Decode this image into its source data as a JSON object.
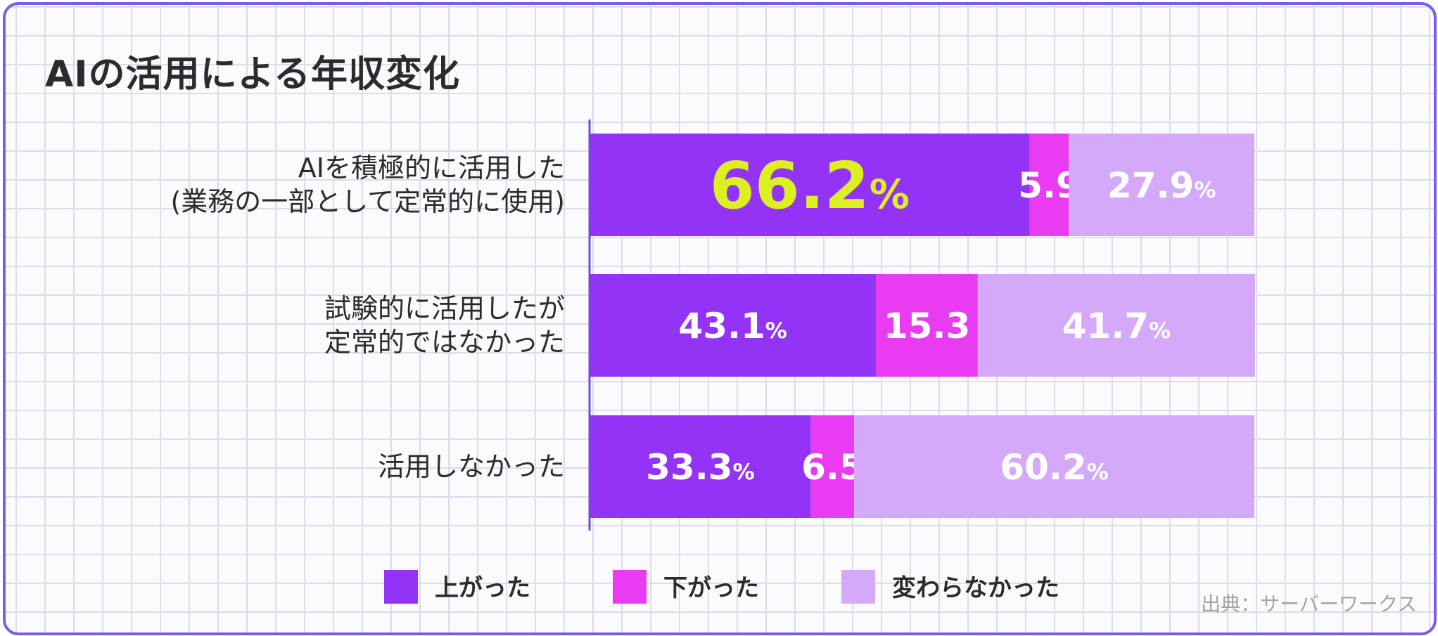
{
  "title": "AIの活用による年収変化",
  "source": "出典：サーバーワークス",
  "colors": {
    "up": "#9333f5",
    "down": "#e93cf2",
    "same": "#d5a9f9",
    "highlight": "#dcf021",
    "label_on_bar": "#ffffff",
    "axis": "#6c4fd6",
    "text": "#2b2b2b"
  },
  "chart_data": {
    "type": "bar",
    "orientation": "horizontal",
    "stacked": true,
    "percent_sign": "%",
    "xlim": [
      0,
      100
    ],
    "categories": [
      [
        "AIを積極的に活用した",
        "(業務の一部として定常的に使用)"
      ],
      [
        "試験的に活用したが",
        "定常的ではなかった"
      ],
      [
        "活用しなかった"
      ]
    ],
    "series": [
      {
        "name": "上がった",
        "key": "up",
        "values": [
          66.2,
          43.1,
          33.3
        ],
        "labels": [
          "66.2",
          "43.1",
          "33.3"
        ],
        "show_percent": true
      },
      {
        "name": "下がった",
        "key": "down",
        "values": [
          5.9,
          15.3,
          6.5
        ],
        "labels": [
          "5.9",
          "15.3",
          "6.5"
        ],
        "show_percent": false
      },
      {
        "name": "変わらなかった",
        "key": "same",
        "values": [
          27.9,
          41.7,
          60.2
        ],
        "labels": [
          "27.9",
          "41.7",
          "60.2"
        ],
        "show_percent": true
      }
    ],
    "highlight": {
      "series": 0,
      "category": 0
    },
    "legend_position": "bottom"
  }
}
